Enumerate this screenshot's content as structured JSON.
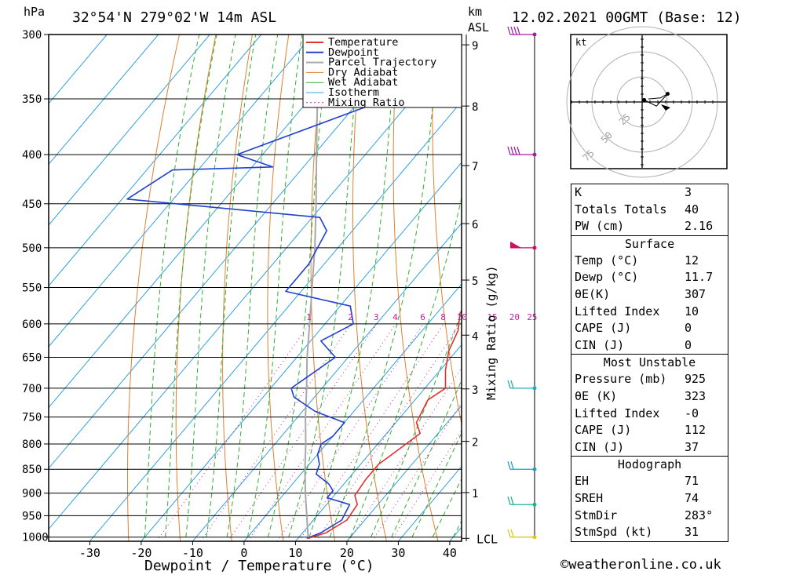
{
  "header": {
    "location": "32°54'N  279°02'W  14m  ASL",
    "datetime": "12.02.2021  00GMT  (Base: 12)",
    "left_unit": "hPa",
    "right_unit_km": "km",
    "right_unit_asl": "ASL"
  },
  "chart_data": {
    "type": "skewt",
    "xlabel": "Dewpoint / Temperature (°C)",
    "ylabel_right": "Mixing Ratio (g/kg)",
    "pressure_levels": [
      300,
      350,
      400,
      450,
      500,
      550,
      600,
      650,
      700,
      750,
      800,
      850,
      900,
      950,
      1000
    ],
    "pressure_range": [
      300,
      1010
    ],
    "temp_ticks": [
      -30,
      -20,
      -10,
      0,
      10,
      20,
      30,
      40
    ],
    "km_ticks": [
      1,
      2,
      3,
      4,
      5,
      6,
      7,
      8,
      9
    ],
    "lcl_label": "LCL",
    "mixing_ratio_labels": [
      "1",
      "2",
      "3",
      "4",
      "6",
      "8",
      "10",
      "15",
      "20",
      "25"
    ],
    "legend": [
      "Temperature",
      "Dewpoint",
      "Parcel Trajectory",
      "Dry Adiabat",
      "Wet Adiabat",
      "Isotherm",
      "Mixing Ratio"
    ],
    "colors": {
      "temperature": "#e03030",
      "dewpoint": "#2040d0",
      "parcel": "#a8a8a8",
      "dry_adiabat": "#e08030",
      "wet_adiabat": "#30b030",
      "isotherm": "#30a0e0",
      "mixing_ratio": "#c020a0"
    },
    "temperature_profile": [
      {
        "p": 1003,
        "t": 12.0
      },
      {
        "p": 990,
        "t": 14.5
      },
      {
        "p": 960,
        "t": 16.5
      },
      {
        "p": 925,
        "t": 16.0
      },
      {
        "p": 905,
        "t": 14.0
      },
      {
        "p": 870,
        "t": 13.5
      },
      {
        "p": 840,
        "t": 13.5
      },
      {
        "p": 820,
        "t": 14.5
      },
      {
        "p": 800,
        "t": 15.5
      },
      {
        "p": 780,
        "t": 16.5
      },
      {
        "p": 760,
        "t": 14.0
      },
      {
        "p": 720,
        "t": 12.5
      },
      {
        "p": 700,
        "t": 14.0
      },
      {
        "p": 670,
        "t": 11.0
      },
      {
        "p": 640,
        "t": 8.5
      },
      {
        "p": 610,
        "t": 7.0
      },
      {
        "p": 585,
        "t": 4.5
      },
      {
        "p": 565,
        "t": 4.0
      },
      {
        "p": 540,
        "t": 3.5
      },
      {
        "p": 510,
        "t": 0.0
      },
      {
        "p": 470,
        "t": -5.5
      },
      {
        "p": 450,
        "t": -6.0
      },
      {
        "p": 420,
        "t": -6.5
      },
      {
        "p": 385,
        "t": -10.5
      },
      {
        "p": 350,
        "t": -16.0
      },
      {
        "p": 320,
        "t": -21.0
      },
      {
        "p": 300,
        "t": -25.0
      }
    ],
    "dewpoint_profile": [
      {
        "p": 1003,
        "t": 11.7
      },
      {
        "p": 990,
        "t": 13.5
      },
      {
        "p": 960,
        "t": 15.5
      },
      {
        "p": 925,
        "t": 14.5
      },
      {
        "p": 910,
        "t": 9.0
      },
      {
        "p": 895,
        "t": 9.0
      },
      {
        "p": 880,
        "t": 7.0
      },
      {
        "p": 860,
        "t": 3.0
      },
      {
        "p": 840,
        "t": 2.0
      },
      {
        "p": 820,
        "t": 0.0
      },
      {
        "p": 800,
        "t": -1.0
      },
      {
        "p": 785,
        "t": 0.0
      },
      {
        "p": 760,
        "t": 0.0
      },
      {
        "p": 740,
        "t": -7.5
      },
      {
        "p": 715,
        "t": -14.0
      },
      {
        "p": 700,
        "t": -16.0
      },
      {
        "p": 650,
        "t": -12.5
      },
      {
        "p": 625,
        "t": -18.0
      },
      {
        "p": 600,
        "t": -14.5
      },
      {
        "p": 575,
        "t": -18.0
      },
      {
        "p": 555,
        "t": -33.0
      },
      {
        "p": 520,
        "t": -33.0
      },
      {
        "p": 480,
        "t": -35.0
      },
      {
        "p": 465,
        "t": -38.5
      },
      {
        "p": 445,
        "t": -79.0
      },
      {
        "p": 415,
        "t": -75.0
      },
      {
        "p": 412,
        "t": -56.0
      },
      {
        "p": 400,
        "t": -65.0
      },
      {
        "p": 348,
        "t": -44.0
      },
      {
        "p": 338,
        "t": -45.0
      },
      {
        "p": 330,
        "t": -40.0
      },
      {
        "p": 318,
        "t": -39.0
      },
      {
        "p": 300,
        "t": -48.0
      }
    ],
    "parcel_profile": [
      {
        "p": 1003,
        "t": 12.0
      },
      {
        "p": 950,
        "t": 8.0
      },
      {
        "p": 900,
        "t": 4.0
      },
      {
        "p": 850,
        "t": 0.0
      },
      {
        "p": 800,
        "t": -4.0
      },
      {
        "p": 750,
        "t": -8.5
      },
      {
        "p": 700,
        "t": -13.0
      },
      {
        "p": 650,
        "t": -18.0
      },
      {
        "p": 600,
        "t": -23.0
      },
      {
        "p": 550,
        "t": -28.5
      },
      {
        "p": 500,
        "t": -34.5
      },
      {
        "p": 450,
        "t": -41.5
      },
      {
        "p": 400,
        "t": -49.5
      },
      {
        "p": 350,
        "t": -58.5
      },
      {
        "p": 300,
        "t": -69.0
      }
    ],
    "wind_barbs": [
      {
        "p": 300,
        "color": "#a020a0"
      },
      {
        "p": 400,
        "color": "#a020a0"
      },
      {
        "p": 500,
        "color": "#d01060"
      },
      {
        "p": 700,
        "color": "#20b0b0"
      },
      {
        "p": 850,
        "color": "#20a0c0"
      },
      {
        "p": 925,
        "color": "#20b090"
      },
      {
        "p": 1000,
        "color": "#d8c820"
      }
    ]
  },
  "hodograph": {
    "unit": "kt",
    "ring_labels": [
      "25",
      "50",
      "75"
    ],
    "points": [
      {
        "u": 2,
        "v": 2
      },
      {
        "u": 14,
        "v": -4
      },
      {
        "u": 25,
        "v": 8
      },
      {
        "u": 18,
        "v": 4
      },
      {
        "u": 6,
        "v": 3
      }
    ]
  },
  "indices": {
    "general": [
      {
        "label": "K",
        "value": "3"
      },
      {
        "label": "Totals Totals",
        "value": "40"
      },
      {
        "label": "PW (cm)",
        "value": "2.16"
      }
    ],
    "surface_title": "Surface",
    "surface": [
      {
        "label": "Temp (°C)",
        "value": "12"
      },
      {
        "label": "Dewp (°C)",
        "value": "11.7"
      },
      {
        "label": "θE(K)",
        "value": "307"
      },
      {
        "label": "Lifted Index",
        "value": "10"
      },
      {
        "label": "CAPE (J)",
        "value": "0"
      },
      {
        "label": "CIN (J)",
        "value": "0"
      }
    ],
    "unstable_title": "Most Unstable",
    "unstable": [
      {
        "label": "Pressure (mb)",
        "value": "925"
      },
      {
        "label": "θE (K)",
        "value": "323"
      },
      {
        "label": "Lifted Index",
        "value": "-0"
      },
      {
        "label": "CAPE (J)",
        "value": "112"
      },
      {
        "label": "CIN (J)",
        "value": "37"
      }
    ],
    "hodo_title": "Hodograph",
    "hodo": [
      {
        "label": "EH",
        "value": "71"
      },
      {
        "label": "SREH",
        "value": "74"
      },
      {
        "label": "StmDir",
        "value": "283°"
      },
      {
        "label": "StmSpd (kt)",
        "value": "31"
      }
    ]
  },
  "footer": {
    "credit": "©weatheronline.co.uk"
  }
}
